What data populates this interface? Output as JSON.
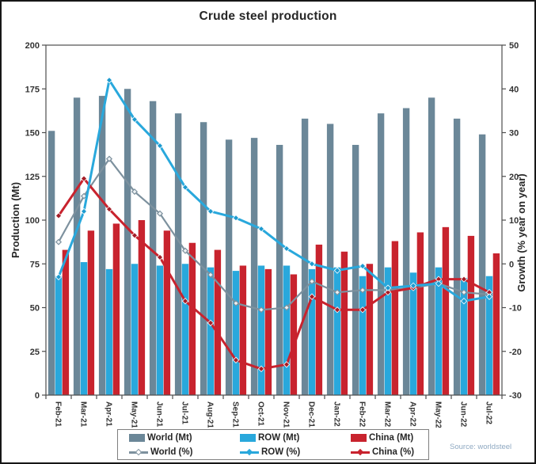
{
  "figure": {
    "title": "Crude steel production",
    "source_note": "Source: worldsteel"
  },
  "chart_data": {
    "type": "combo-bar-line",
    "title": "Crude steel production",
    "categories": [
      "Feb-21",
      "Mar-21",
      "Apr-21",
      "May-21",
      "Jun-21",
      "Jul-21",
      "Aug-21",
      "Sep-21",
      "Oct-21",
      "Nov-21",
      "Dec-21",
      "Jan-22",
      "Feb-22",
      "Mar-22",
      "Apr-22",
      "May-22",
      "Jun-22",
      "Jul-22"
    ],
    "bar_series": [
      {
        "name": "World (Mt)",
        "color": "#6b8798",
        "values": [
          151,
          170,
          171,
          175,
          168,
          161,
          156,
          146,
          147,
          143,
          158,
          155,
          143,
          161,
          164,
          170,
          158,
          149
        ]
      },
      {
        "name": "ROW (Mt)",
        "color": "#29a8dc",
        "values": [
          68,
          76,
          72,
          75,
          74,
          75,
          73,
          71,
          74,
          74,
          72,
          73,
          68,
          73,
          70,
          73,
          67,
          68
        ]
      },
      {
        "name": "China (Mt)",
        "color": "#c8232e",
        "values": [
          83,
          94,
          98,
          100,
          94,
          87,
          83,
          74,
          72,
          69,
          86,
          82,
          75,
          88,
          93,
          96,
          91,
          81
        ]
      }
    ],
    "line_series": [
      {
        "name": "World (%)",
        "color": "#7d919e",
        "marker": "hollow-diamond",
        "marker_fill": "#eef2f4",
        "values": [
          5,
          15.5,
          24,
          16.5,
          11.5,
          3,
          -2.5,
          -9,
          -10.5,
          -10,
          -4,
          -6.5,
          -6,
          -6,
          -5.5,
          -4.5,
          -6.5,
          -7
        ]
      },
      {
        "name": "ROW (%)",
        "color": "#29a8dc",
        "marker": "diamond",
        "marker_fill": "#1d9bd0",
        "values": [
          -3,
          12,
          42,
          33,
          27,
          17.5,
          12,
          10.5,
          8,
          3.5,
          0,
          -1.5,
          -0.5,
          -5.5,
          -5,
          -4.5,
          -8.5,
          -7.5
        ]
      },
      {
        "name": "China (%)",
        "color": "#c8232e",
        "marker": "diamond",
        "marker_fill": "#a51d27",
        "values": [
          11,
          19.5,
          12.5,
          6.5,
          1.5,
          -8.5,
          -13.5,
          -22,
          -24,
          -23,
          -7.5,
          -10.5,
          -10.5,
          -6.5,
          -5.5,
          -3.5,
          -3.5,
          -6.5
        ]
      }
    ],
    "left_axis": {
      "label": "Production (Mt)",
      "min": 0,
      "max": 200,
      "step": 25,
      "ticks": [
        200,
        175,
        150,
        125,
        100,
        75,
        50,
        25,
        0
      ]
    },
    "right_axis": {
      "label": "Growth (% year on year)",
      "min": -30,
      "max": 50,
      "step": 10,
      "ticks": [
        50,
        40,
        30,
        20,
        10,
        0,
        -10,
        -20,
        -30
      ]
    },
    "grid": false,
    "legend_position": "bottom"
  },
  "legend": {
    "items": [
      {
        "label": "World (Mt)",
        "swatch": "bar",
        "color": "#6b8798",
        "hollow": false
      },
      {
        "label": "ROW (Mt)",
        "swatch": "bar",
        "color": "#29a8dc",
        "hollow": false
      },
      {
        "label": "China (Mt)",
        "swatch": "bar",
        "color": "#c8232e",
        "hollow": false
      },
      {
        "label": "World (%)",
        "swatch": "line",
        "color": "#7d919e",
        "hollow": true
      },
      {
        "label": "ROW (%)",
        "swatch": "line",
        "color": "#29a8dc",
        "hollow": false
      },
      {
        "label": "China (%)",
        "swatch": "line",
        "color": "#c8232e",
        "hollow": false
      }
    ]
  }
}
